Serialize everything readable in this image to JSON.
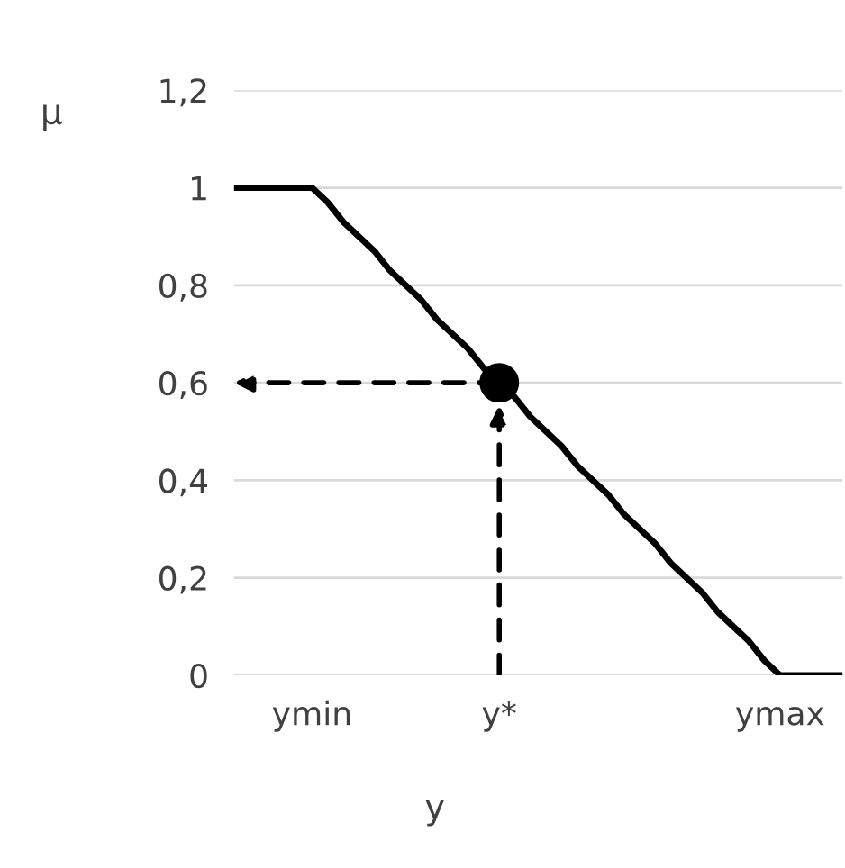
{
  "chart_data": {
    "type": "line",
    "xlabel": "y",
    "ylabel": "μ",
    "categories": [
      null,
      null,
      null,
      null,
      null,
      "ymin",
      null,
      null,
      null,
      null,
      null,
      null,
      null,
      null,
      null,
      null,
      null,
      "y*",
      null,
      null,
      null,
      null,
      null,
      null,
      null,
      null,
      null,
      null,
      null,
      null,
      null,
      null,
      null,
      null,
      null,
      "ymax",
      null,
      null,
      null,
      null
    ],
    "series": [
      {
        "color": "#000000",
        "values": [
          1,
          1,
          1,
          1,
          1,
          1,
          0.97,
          0.93,
          0.9,
          0.87,
          0.83,
          0.8,
          0.77,
          0.73,
          0.7,
          0.67,
          0.63,
          0.6,
          0.57,
          0.53,
          0.5,
          0.47,
          0.43,
          0.4,
          0.37,
          0.33,
          0.3,
          0.27,
          0.23,
          0.2,
          0.17,
          0.13,
          0.1,
          0.07,
          0.03,
          0,
          0,
          0,
          0,
          0
        ]
      },
      {
        "type": "scatter",
        "color": "#000000",
        "marker": "circle",
        "values": [
          null,
          null,
          null,
          null,
          null,
          null,
          null,
          null,
          null,
          null,
          null,
          null,
          null,
          null,
          null,
          null,
          null,
          0.6,
          null,
          null,
          null,
          null,
          null,
          null,
          null,
          null,
          null,
          null,
          null,
          null,
          null,
          null,
          null,
          null,
          null,
          null,
          null,
          null,
          null,
          null
        ]
      }
    ],
    "ylim": [
      0,
      1.2
    ],
    "yticks": [
      {
        "value": 0,
        "label": "0"
      },
      {
        "value": 0.2,
        "label": "0,2"
      },
      {
        "value": 0.4,
        "label": "0,4"
      },
      {
        "value": 0.6,
        "label": "0,6"
      },
      {
        "value": 0.8,
        "label": "0,8"
      },
      {
        "value": 1,
        "label": "1"
      },
      {
        "value": 1.2,
        "label": "1,2"
      }
    ],
    "grid": "y",
    "legend": false
  }
}
